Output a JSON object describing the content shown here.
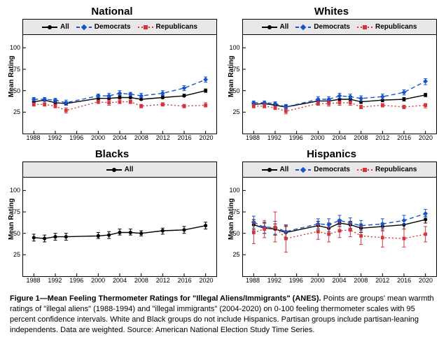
{
  "figure": {
    "ylabel": "Mean Rating",
    "ylim": [
      0,
      115
    ],
    "yticks": [
      25,
      50,
      75,
      100
    ],
    "xlim": [
      1986,
      2022
    ],
    "xticks": [
      1988,
      1992,
      1996,
      2000,
      2004,
      2008,
      2012,
      2016,
      2020
    ],
    "years": [
      1988,
      1990,
      1992,
      1994,
      2000,
      2002,
      2004,
      2006,
      2008,
      2012,
      2016,
      2020
    ],
    "legend_labels": {
      "all": "All",
      "dem": "Democrats",
      "rep": "Republicans"
    },
    "colors": {
      "all": "#000000",
      "dem": "#1652cf",
      "rep": "#d4333a",
      "legend_bg": "#e8e8e8",
      "bg": "#ffffff",
      "border": "#000000"
    },
    "markers": {
      "all": "circle",
      "dem": "diamond",
      "rep": "square"
    },
    "line_style": {
      "all": "solid",
      "dem": "dash",
      "rep": "dot"
    },
    "panels": [
      {
        "key": "national",
        "title": "National",
        "show_series": [
          "all",
          "dem",
          "rep"
        ],
        "series": {
          "all": {
            "val": [
              37,
              39,
              36,
              35,
              41,
              41,
              42,
              42,
              40,
              42,
              44,
              50
            ],
            "lo": [
              36,
              38,
              35,
              33,
              40,
              39,
              41,
              41,
              39,
              41,
              43,
              48
            ],
            "hi": [
              38,
              40,
              38,
              37,
              42,
              43,
              44,
              44,
              42,
              44,
              46,
              52
            ]
          },
          "dem": {
            "val": [
              40,
              40,
              39,
              36,
              44,
              44,
              47,
              46,
              44,
              47,
              53,
              63
            ],
            "lo": [
              38,
              38,
              36,
              33,
              42,
              42,
              45,
              44,
              42,
              45,
              50,
              60
            ],
            "hi": [
              42,
              42,
              41,
              39,
              46,
              47,
              50,
              48,
              47,
              50,
              56,
              66
            ]
          },
          "rep": {
            "val": [
              34,
              34,
              32,
              27,
              37,
              36,
              37,
              37,
              32,
              34,
              32,
              33
            ],
            "lo": [
              32,
              32,
              30,
              24,
              35,
              33,
              35,
              35,
              30,
              32,
              30,
              31
            ],
            "hi": [
              36,
              36,
              34,
              30,
              39,
              39,
              40,
              39,
              34,
              36,
              34,
              36
            ]
          }
        }
      },
      {
        "key": "whites",
        "title": "Whites",
        "show_series": [
          "all",
          "dem",
          "rep"
        ],
        "series": {
          "all": {
            "val": [
              34,
              35,
              33,
              31,
              38,
              38,
              40,
              40,
              37,
              39,
              40,
              45
            ],
            "lo": [
              33,
              34,
              31,
              29,
              37,
              36,
              38,
              38,
              35,
              37,
              38,
              43
            ],
            "hi": [
              35,
              36,
              34,
              33,
              39,
              40,
              41,
              41,
              38,
              40,
              42,
              47
            ]
          },
          "dem": {
            "val": [
              36,
              36,
              35,
              31,
              40,
              40,
              44,
              43,
              41,
              43,
              48,
              61
            ],
            "lo": [
              34,
              34,
              32,
              28,
              38,
              37,
              41,
              40,
              38,
              40,
              45,
              57
            ],
            "hi": [
              38,
              38,
              37,
              34,
              43,
              43,
              47,
              46,
              44,
              46,
              51,
              64
            ]
          },
          "rep": {
            "val": [
              32,
              32,
              30,
              26,
              35,
              35,
              36,
              36,
              31,
              33,
              31,
              33
            ],
            "lo": [
              30,
              30,
              28,
              23,
              33,
              32,
              33,
              33,
              29,
              31,
              29,
              30
            ],
            "hi": [
              34,
              35,
              32,
              29,
              37,
              38,
              38,
              38,
              33,
              35,
              33,
              35
            ]
          }
        }
      },
      {
        "key": "blacks",
        "title": "Blacks",
        "show_series": [
          "all"
        ],
        "series": {
          "all": {
            "val": [
              45,
              44,
              46,
              46,
              47,
              48,
              51,
              51,
              50,
              53,
              54,
              59
            ],
            "lo": [
              41,
              40,
              42,
              42,
              44,
              44,
              48,
              48,
              47,
              49,
              50,
              55
            ],
            "hi": [
              49,
              48,
              50,
              50,
              51,
              52,
              55,
              55,
              53,
              56,
              58,
              63
            ]
          }
        }
      },
      {
        "key": "hispanics",
        "title": "Hispanics",
        "show_series": [
          "all",
          "dem",
          "rep"
        ],
        "series": {
          "all": {
            "val": [
              60,
              56,
              55,
              51,
              59,
              56,
              62,
              60,
              56,
              58,
              60,
              66
            ],
            "lo": [
              54,
              50,
              48,
              44,
              55,
              50,
              58,
              55,
              51,
              53,
              55,
              62
            ],
            "hi": [
              66,
              62,
              61,
              58,
              64,
              62,
              66,
              64,
              61,
              62,
              65,
              70
            ]
          },
          "dem": {
            "val": [
              63,
              57,
              57,
              52,
              61,
              60,
              65,
              62,
              59,
              61,
              65,
              73
            ],
            "lo": [
              56,
              50,
              49,
              43,
              55,
              52,
              60,
              56,
              53,
              55,
              60,
              68
            ],
            "hi": [
              70,
              63,
              64,
              60,
              67,
              67,
              71,
              68,
              65,
              67,
              71,
              78
            ]
          },
          "rep": {
            "val": [
              51,
              55,
              57,
              44,
              52,
              49,
              53,
              54,
              47,
              45,
              44,
              49
            ],
            "lo": [
              38,
              45,
              40,
              28,
              43,
              40,
              45,
              46,
              37,
              34,
              34,
              40
            ],
            "hi": [
              64,
              65,
              75,
              59,
              60,
              57,
              62,
              63,
              58,
              57,
              55,
              58
            ]
          }
        }
      }
    ],
    "caption": {
      "lead": "Figure 1—Mean Feeling Thermometer Ratings for \"Illegal Aliens/Immigrants\" (ANES).",
      "body": " Points are groups' mean warmth ratings of \"illegal aliens\" (1988-1994) and \"illegal immigrants\" (2004-2020) on 0-100 feeling thermometer scales with 95 percent confidence intervals. White and Black groups do not include Hispanics. Partisan groups include partisan-leaning independents. Data are weighted. Source: American National Election Study Time Series."
    }
  }
}
